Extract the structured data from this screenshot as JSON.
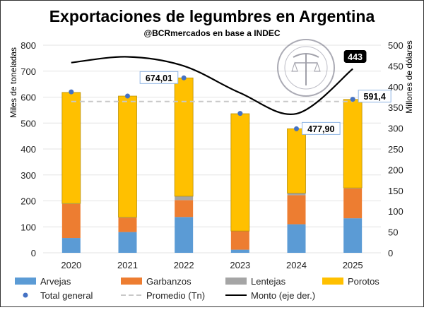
{
  "chart_data": {
    "type": "bar",
    "title": "Exportaciones de legumbres en Argentina",
    "subtitle": "@BCRmercados en base a INDEC",
    "ylabel": "Miles de toneladas",
    "y2label": "Millones de dólares",
    "ylim": [
      0,
      800
    ],
    "y2lim": [
      0,
      500
    ],
    "yticks": [
      "0",
      "100",
      "200",
      "300",
      "400",
      "500",
      "600",
      "700",
      "800"
    ],
    "y2ticks": [
      "0",
      "50",
      "100",
      "150",
      "200",
      "250",
      "300",
      "350",
      "400",
      "450",
      "500"
    ],
    "categories": [
      "2020",
      "2021",
      "2022",
      "2023",
      "2024",
      "2025"
    ],
    "series": [
      {
        "name": "Arvejas",
        "color": "#5b9bd5",
        "values": [
          57,
          80,
          138,
          12,
          110,
          133
        ]
      },
      {
        "name": "Garbanzos",
        "color": "#ed7d31",
        "values": [
          131,
          55,
          65,
          71,
          112,
          115
        ]
      },
      {
        "name": "Lentejas",
        "color": "#a5a5a5",
        "values": [
          2,
          2,
          15,
          1,
          8,
          2
        ]
      },
      {
        "name": "Porotos",
        "color": "#ffc000",
        "values": [
          428,
          467,
          456,
          452,
          248,
          341
        ]
      }
    ],
    "total": {
      "name": "Total general",
      "color": "#4472c4",
      "values": [
        620,
        604,
        674.01,
        537,
        477.9,
        591.4
      ]
    },
    "promedio": {
      "name": "Promedio (Tn)",
      "color": "#c8c8c8",
      "value": 583
    },
    "monto": {
      "name": "Monto (eje der.)",
      "color": "#000000",
      "values": [
        458,
        472,
        450,
        385,
        335,
        443
      ]
    },
    "data_labels": {
      "2022": "674,01",
      "2024": "477,90",
      "2025": "591,4",
      "monto_2025": "443"
    },
    "watermark": "BOLSA DE COMERCIO DE ROSARIO",
    "legend": "bottom"
  }
}
